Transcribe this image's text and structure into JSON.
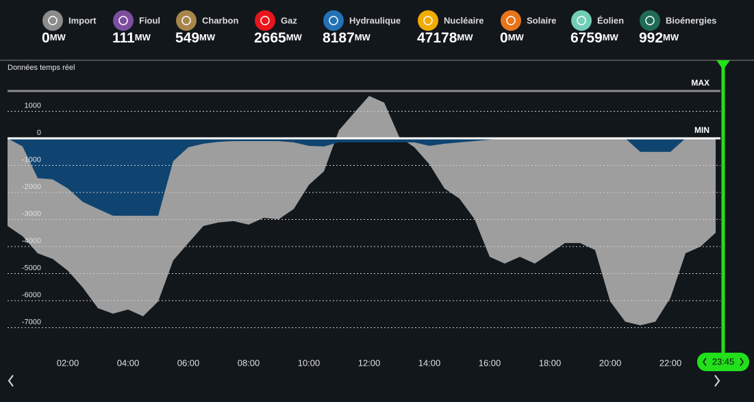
{
  "sources": [
    {
      "name": "Import",
      "value": 0,
      "color": "#8c8c8c"
    },
    {
      "name": "Fioul",
      "value": 111,
      "color": "#7d4e9e"
    },
    {
      "name": "Charbon",
      "value": 549,
      "color": "#a8854a"
    },
    {
      "name": "Gaz",
      "value": 2665,
      "color": "#e8151b"
    },
    {
      "name": "Hydraulique",
      "value": 8187,
      "color": "#2371b6"
    },
    {
      "name": "Nucléaire",
      "value": 47178,
      "color": "#f0ab00"
    },
    {
      "name": "Solaire",
      "value": 0,
      "color": "#e8751a"
    },
    {
      "name": "Éolien",
      "value": 6759,
      "color": "#72cdb7"
    },
    {
      "name": "Bioénergies",
      "value": 992,
      "color": "#1f6b54"
    }
  ],
  "unit": "MW",
  "chart_data": {
    "type": "area",
    "subtitle": "Données temps réel",
    "x": [
      0,
      0.5,
      1,
      1.5,
      2,
      2.5,
      3,
      3.5,
      4,
      4.5,
      5,
      5.5,
      6,
      6.5,
      7,
      7.5,
      8,
      8.5,
      9,
      9.5,
      10,
      10.5,
      11,
      11.5,
      12,
      12.5,
      13,
      13.5,
      14,
      14.5,
      15,
      15.5,
      16,
      16.5,
      17,
      17.5,
      18,
      18.5,
      19,
      19.5,
      20,
      20.5,
      21,
      21.5,
      22,
      22.5,
      23,
      23.5
    ],
    "series": [
      {
        "color": "#9e9e9e",
        "values": [
          -3240,
          -3620,
          -4250,
          -4460,
          -4890,
          -5520,
          -6280,
          -6480,
          -6330,
          -6580,
          -6030,
          -4510,
          -3870,
          -3240,
          -3110,
          -3060,
          -3190,
          -2940,
          -2990,
          -2610,
          -1720,
          -1220,
          300,
          940,
          1570,
          1320,
          50,
          -330,
          -960,
          -1850,
          -2230,
          -2990,
          -4380,
          -4630,
          -4380,
          -4630,
          -4250,
          -3870,
          -3870,
          -4130,
          -6030,
          -6780,
          -6910,
          -6780,
          -5900,
          -4250,
          -4000,
          -3490
        ]
      },
      {
        "color": "#0f4470",
        "values": [
          0,
          -300,
          -1470,
          -1520,
          -1850,
          -2350,
          -2610,
          -2860,
          -2860,
          -2860,
          -2860,
          -840,
          -330,
          -200,
          -130,
          -100,
          -100,
          -100,
          -100,
          -150,
          -280,
          -300,
          -150,
          -150,
          -150,
          -150,
          -150,
          -150,
          -280,
          -200,
          -150,
          -100,
          -50,
          0,
          0,
          0,
          0,
          0,
          0,
          0,
          0,
          0,
          -500,
          -500,
          -500,
          0,
          0,
          0
        ]
      }
    ],
    "xlim": [
      0,
      23.75
    ],
    "xticks": [
      {
        "value": 2,
        "label": "02:00"
      },
      {
        "value": 4,
        "label": "04:00"
      },
      {
        "value": 6,
        "label": "06:00"
      },
      {
        "value": 8,
        "label": "08:00"
      },
      {
        "value": 10,
        "label": "10:00"
      },
      {
        "value": 12,
        "label": "12:00"
      },
      {
        "value": 14,
        "label": "14:00"
      },
      {
        "value": 16,
        "label": "16:00"
      },
      {
        "value": 18,
        "label": "18:00"
      },
      {
        "value": 20,
        "label": "20:00"
      },
      {
        "value": 22,
        "label": "22:00"
      }
    ],
    "ylim": [
      -8000,
      2000
    ],
    "yticks": [
      1000,
      0,
      -1000,
      -2000,
      -3000,
      -4000,
      -5000,
      -6000,
      -7000
    ],
    "grid": true,
    "reference_lines": [
      {
        "label": "MAX",
        "value": 1750,
        "color": "#8c8c8c"
      },
      {
        "label": "MIN",
        "value": 0,
        "color": "#ffffff"
      }
    ],
    "current": {
      "value": 23.75,
      "label": "23:45",
      "color": "#22e01a"
    }
  }
}
